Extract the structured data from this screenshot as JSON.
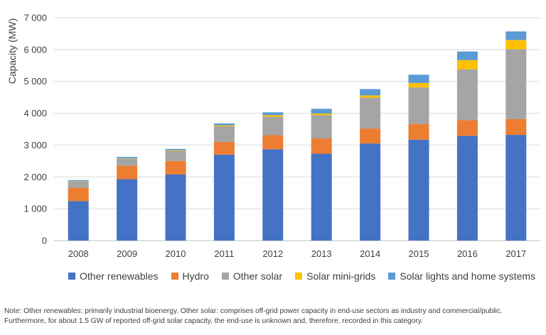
{
  "chart_data": {
    "type": "bar",
    "stacked": true,
    "ylabel": "Capacity (MW)",
    "ylim": [
      0,
      7000
    ],
    "yticks": [
      "0",
      "1 000",
      "2 000",
      "3 000",
      "4 000",
      "5 000",
      "6 000",
      "7 000"
    ],
    "ytick_values": [
      0,
      1000,
      2000,
      3000,
      4000,
      5000,
      6000,
      7000
    ],
    "grid": true,
    "legend_position": "bottom",
    "categories": [
      "2008",
      "2009",
      "2010",
      "2011",
      "2012",
      "2013",
      "2014",
      "2015",
      "2016",
      "2017"
    ],
    "series": [
      {
        "name": "Other renewables",
        "color": "#4472c4",
        "values": [
          1240,
          1930,
          2080,
          2700,
          2870,
          2730,
          3050,
          3170,
          3290,
          3320
        ]
      },
      {
        "name": "Hydro",
        "color": "#ed7d31",
        "values": [
          420,
          420,
          420,
          400,
          440,
          480,
          470,
          490,
          490,
          500
        ]
      },
      {
        "name": "Other solar",
        "color": "#a5a5a5",
        "values": [
          200,
          230,
          320,
          490,
          580,
          730,
          970,
          1150,
          1600,
          2190
        ]
      },
      {
        "name": "Solar mini-grids",
        "color": "#ffc000",
        "values": [
          10,
          10,
          20,
          30,
          50,
          50,
          70,
          140,
          290,
          290
        ]
      },
      {
        "name": "Solar lights and home systems",
        "color": "#5b9bd5",
        "values": [
          30,
          40,
          40,
          60,
          90,
          150,
          200,
          260,
          270,
          270
        ]
      }
    ]
  },
  "note": {
    "line1": "Note: Other renewables: primarily industrial bioenergy. Other solar: comprises off-grid power capacity in end-use sectors as industry and commercial/public.",
    "line2": "Furthermore, for about 1.5 GW of reported off-grid solar capacity, the end-use is unknown and, therefore, recorded in this category."
  }
}
